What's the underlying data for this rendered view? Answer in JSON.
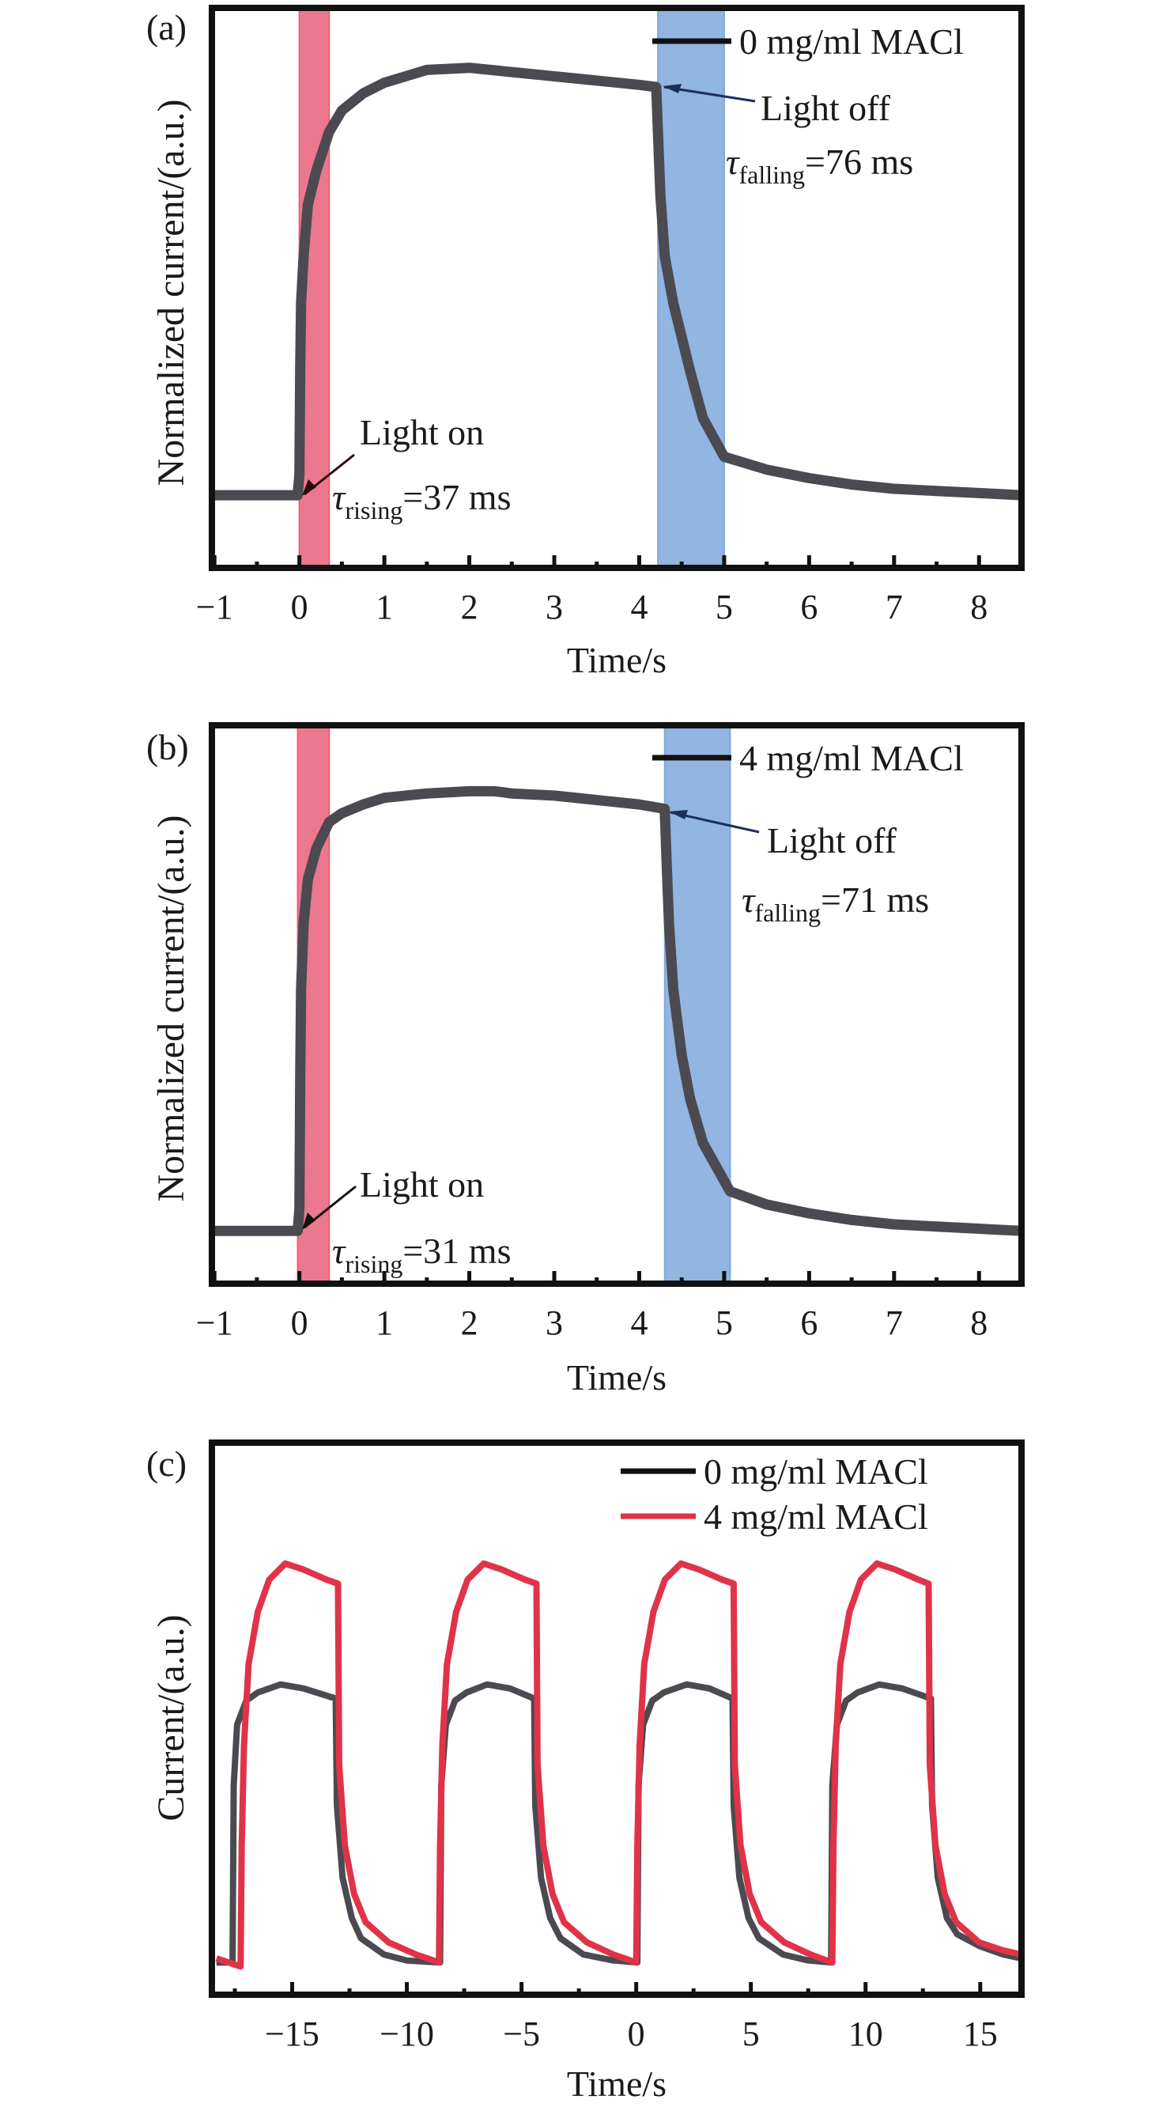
{
  "chart_data": [
    {
      "type": "line",
      "panel_label": "(a)",
      "xlabel": "Time/s",
      "ylabel": "Normalized current/(a.u.)",
      "xlim": [
        -1.03,
        8.5
      ],
      "ylim": [
        -0.17,
        1.14
      ],
      "xticks": [
        -1,
        0,
        1,
        2,
        3,
        4,
        5,
        6,
        7,
        8
      ],
      "xtick_labels": [
        "−1",
        "0",
        "1",
        "2",
        "3",
        "4",
        "5",
        "6",
        "7",
        "8"
      ],
      "minor_xticks": true,
      "yticks_shown": false,
      "grid": false,
      "legend": {
        "placement": "top-right",
        "entries": [
          {
            "label": "0 mg/ml MACl",
            "color": "#1a1a1a"
          }
        ]
      },
      "shaded_regions": [
        {
          "name": "light-on-region",
          "x": [
            0,
            0.35
          ],
          "color": "#e8607a"
        },
        {
          "name": "light-off-region",
          "x": [
            4.22,
            5.0
          ],
          "color": "#7fa8dd"
        }
      ],
      "annotations": [
        {
          "name": "light-on",
          "text": "Light on",
          "tau_symbol": "τ",
          "tau_sub": "rising",
          "tau_value": "=37 ms",
          "arrow_to": [
            0.02,
            0.0
          ]
        },
        {
          "name": "light-off",
          "text": "Light off",
          "tau_symbol": "τ",
          "tau_sub": "falling",
          "tau_value": "=76 ms",
          "arrow_to": [
            4.22,
            0.955
          ]
        }
      ],
      "series": [
        {
          "name": "0 mg/ml MACl",
          "color": "#4a4a50",
          "x": [
            -1.03,
            -0.5,
            -0.02,
            0.0,
            0.01,
            0.02,
            0.05,
            0.1,
            0.2,
            0.35,
            0.5,
            0.75,
            1.0,
            1.5,
            2.0,
            2.5,
            3.0,
            3.5,
            4.0,
            4.2,
            4.22,
            4.25,
            4.3,
            4.4,
            4.5,
            4.6,
            4.75,
            5.0,
            5.5,
            6.0,
            6.5,
            7.0,
            7.5,
            8.0,
            8.5
          ],
          "y": [
            0.0,
            0.0,
            0.0,
            0.05,
            0.3,
            0.45,
            0.56,
            0.68,
            0.76,
            0.85,
            0.9,
            0.94,
            0.965,
            0.995,
            1.0,
            0.99,
            0.98,
            0.97,
            0.96,
            0.955,
            0.85,
            0.7,
            0.56,
            0.45,
            0.37,
            0.29,
            0.18,
            0.09,
            0.06,
            0.04,
            0.025,
            0.015,
            0.01,
            0.005,
            0.0
          ]
        }
      ]
    },
    {
      "type": "line",
      "panel_label": "(b)",
      "xlabel": "Time/s",
      "ylabel": "Normalized current/(a.u.)",
      "xlim": [
        -1.03,
        8.5
      ],
      "ylim": [
        -0.12,
        1.15
      ],
      "xticks": [
        -1,
        0,
        1,
        2,
        3,
        4,
        5,
        6,
        7,
        8
      ],
      "xtick_labels": [
        "−1",
        "0",
        "1",
        "2",
        "3",
        "4",
        "5",
        "6",
        "7",
        "8"
      ],
      "minor_xticks": true,
      "yticks_shown": false,
      "grid": false,
      "legend": {
        "placement": "top-right",
        "entries": [
          {
            "label": "4 mg/ml MACl",
            "color": "#1a1a1a"
          }
        ]
      },
      "shaded_regions": [
        {
          "name": "light-on-region",
          "x": [
            -0.02,
            0.35
          ],
          "color": "#e8607a"
        },
        {
          "name": "light-off-region",
          "x": [
            4.3,
            5.07
          ],
          "color": "#7fa8dd"
        }
      ],
      "annotations": [
        {
          "name": "light-on",
          "text": "Light on",
          "tau_symbol": "τ",
          "tau_sub": "rising",
          "tau_value": "=31 ms",
          "arrow_to": [
            0.02,
            0.0
          ]
        },
        {
          "name": "light-off",
          "text": "Light off",
          "tau_symbol": "τ",
          "tau_sub": "falling",
          "tau_value": "=71 ms",
          "arrow_to": [
            4.3,
            0.96
          ]
        }
      ],
      "series": [
        {
          "name": "4 mg/ml MACl",
          "color": "#4a4a50",
          "x": [
            -1.03,
            -0.5,
            -0.02,
            0.0,
            0.01,
            0.02,
            0.05,
            0.1,
            0.2,
            0.35,
            0.5,
            0.75,
            1.0,
            1.5,
            2.0,
            2.3,
            2.5,
            3.0,
            3.5,
            4.0,
            4.3,
            4.32,
            4.35,
            4.4,
            4.5,
            4.6,
            4.75,
            5.07,
            5.5,
            6.0,
            6.5,
            7.0,
            7.5,
            8.0,
            8.5
          ],
          "y": [
            0.0,
            0.0,
            0.0,
            0.05,
            0.35,
            0.55,
            0.7,
            0.8,
            0.87,
            0.93,
            0.95,
            0.97,
            0.985,
            0.995,
            1.0,
            1.0,
            0.995,
            0.99,
            0.98,
            0.97,
            0.96,
            0.85,
            0.7,
            0.55,
            0.4,
            0.3,
            0.2,
            0.09,
            0.06,
            0.04,
            0.025,
            0.015,
            0.01,
            0.005,
            0.0
          ]
        }
      ]
    },
    {
      "type": "line",
      "panel_label": "(c)",
      "xlabel": "Time/s",
      "ylabel": "Current/(a.u.)",
      "xlim": [
        -18.5,
        16.8
      ],
      "ylim": [
        -0.07,
        1.3
      ],
      "xticks": [
        -15,
        -10,
        -5,
        0,
        5,
        10,
        15
      ],
      "xtick_labels": [
        "−15",
        "−10",
        "−5",
        "0",
        "5",
        "10",
        "15"
      ],
      "minor_xticks": true,
      "yticks_shown": false,
      "grid": false,
      "legend": {
        "placement": "top-right",
        "entries": [
          {
            "label": "0 mg/ml MACl",
            "color": "#1a1a1a"
          },
          {
            "label": "4 mg/ml MACl",
            "color": "#e03347"
          }
        ]
      },
      "series": [
        {
          "name": "0 mg/ml MACl",
          "color": "#4a4a50",
          "x": [
            -18.3,
            -17.6,
            -17.55,
            -17.4,
            -17.0,
            -16.5,
            -15.5,
            -14.5,
            -13.1,
            -13.05,
            -12.8,
            -12.4,
            -12.0,
            -11.0,
            -10.0,
            -8.55,
            -8.5,
            -8.3,
            -7.9,
            -7.4,
            -6.5,
            -5.5,
            -4.45,
            -4.4,
            -4.15,
            -3.75,
            -3.3,
            -2.3,
            -1.0,
            0.05,
            0.1,
            0.3,
            0.7,
            1.2,
            2.2,
            3.2,
            4.2,
            4.25,
            4.5,
            4.9,
            5.35,
            6.4,
            7.5,
            8.5,
            8.55,
            8.75,
            9.15,
            9.65,
            10.6,
            11.6,
            12.85,
            12.9,
            13.15,
            13.55,
            14.0,
            15.0,
            16.0,
            16.8
          ],
          "y": [
            0.01,
            0.01,
            0.45,
            0.6,
            0.66,
            0.68,
            0.7,
            0.69,
            0.665,
            0.4,
            0.22,
            0.12,
            0.07,
            0.03,
            0.015,
            0.01,
            0.45,
            0.6,
            0.66,
            0.68,
            0.7,
            0.69,
            0.665,
            0.4,
            0.22,
            0.12,
            0.07,
            0.03,
            0.015,
            0.01,
            0.45,
            0.6,
            0.66,
            0.68,
            0.7,
            0.69,
            0.665,
            0.4,
            0.22,
            0.12,
            0.07,
            0.03,
            0.015,
            0.01,
            0.45,
            0.6,
            0.66,
            0.68,
            0.7,
            0.69,
            0.665,
            0.4,
            0.22,
            0.12,
            0.08,
            0.05,
            0.03,
            0.02
          ]
        },
        {
          "name": "4 mg/ml MACl",
          "color": "#e03347",
          "x": [
            -18.3,
            -17.25,
            -17.2,
            -17.1,
            -16.9,
            -16.5,
            -16.0,
            -15.3,
            -14.5,
            -13.5,
            -13.0,
            -12.95,
            -12.7,
            -12.3,
            -11.8,
            -10.8,
            -9.6,
            -8.6,
            -8.55,
            -8.45,
            -8.25,
            -7.85,
            -7.35,
            -6.65,
            -5.85,
            -4.85,
            -4.35,
            -4.3,
            -4.05,
            -3.65,
            -3.15,
            -2.15,
            -1.0,
            0.0,
            0.05,
            0.15,
            0.35,
            0.75,
            1.25,
            1.95,
            2.75,
            3.75,
            4.25,
            4.3,
            4.55,
            4.95,
            5.45,
            6.45,
            7.6,
            8.55,
            8.6,
            8.7,
            8.9,
            9.3,
            9.8,
            10.5,
            11.3,
            12.3,
            12.75,
            12.8,
            13.05,
            13.45,
            13.95,
            14.95,
            16.0,
            16.8
          ],
          "y": [
            0.02,
            0.0,
            0.3,
            0.55,
            0.75,
            0.88,
            0.96,
            1.0,
            0.985,
            0.96,
            0.95,
            0.5,
            0.3,
            0.18,
            0.11,
            0.06,
            0.03,
            0.01,
            0.3,
            0.55,
            0.75,
            0.88,
            0.96,
            1.0,
            0.985,
            0.96,
            0.95,
            0.5,
            0.3,
            0.18,
            0.11,
            0.06,
            0.03,
            0.01,
            0.3,
            0.55,
            0.75,
            0.88,
            0.96,
            1.0,
            0.985,
            0.96,
            0.95,
            0.5,
            0.3,
            0.18,
            0.11,
            0.06,
            0.03,
            0.01,
            0.3,
            0.55,
            0.75,
            0.88,
            0.96,
            1.0,
            0.985,
            0.96,
            0.95,
            0.5,
            0.3,
            0.18,
            0.11,
            0.06,
            0.04,
            0.03
          ]
        }
      ]
    }
  ]
}
